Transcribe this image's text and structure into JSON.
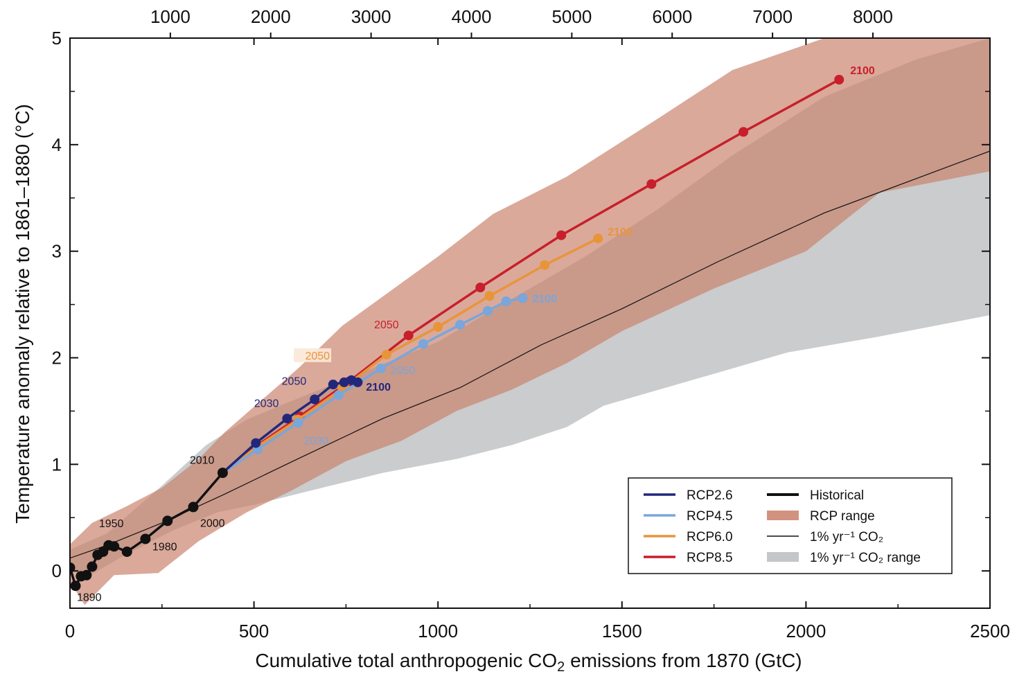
{
  "chart_data": {
    "type": "line",
    "xlabel": "Cumulative total anthropogenic CO",
    "xlabel_sub": "2",
    "xlabel_tail": " emissions from 1870 (GtC)",
    "ylabel": "Temperature anomaly relative to 1861–1880 (°C)",
    "xlim": [
      0,
      2500
    ],
    "ylim": [
      -0.35,
      5
    ],
    "x_ticks": [
      0,
      500,
      1000,
      1500,
      2000,
      2500
    ],
    "x_tick_labels": [
      "0",
      "500",
      "1000",
      "1500",
      "2000",
      "2500"
    ],
    "y_ticks": [
      0,
      1,
      2,
      3,
      4,
      5
    ],
    "y_tick_labels": [
      "0",
      "1",
      "2",
      "3",
      "4",
      "5"
    ],
    "top_axis": {
      "ticks_gtco2": [
        1000,
        2000,
        3000,
        4000,
        5000,
        6000,
        7000,
        8000
      ],
      "tick_labels": [
        "1000",
        "2000",
        "3000",
        "4000",
        "5000",
        "6000",
        "7000",
        "8000"
      ],
      "gtc_per_unit": 0.27273
    },
    "colors": {
      "rcp26": "#22277a",
      "rcp45": "#79a6db",
      "rcp60": "#e8953a",
      "rcp85": "#c71f2c",
      "historical": "#111111",
      "rcp_range": "#c9806a",
      "pct_range": "#c4c6c8"
    },
    "series": [
      {
        "name": "Historical",
        "key": "historical",
        "x": [
          0,
          15,
          30,
          45,
          60,
          75,
          90,
          105,
          120,
          155,
          205,
          265,
          335,
          415
        ],
        "y": [
          0.03,
          -0.14,
          -0.05,
          -0.04,
          0.04,
          0.15,
          0.18,
          0.24,
          0.23,
          0.18,
          0.3,
          0.47,
          0.6,
          0.92
        ]
      },
      {
        "name": "RCP2.6",
        "key": "rcp26",
        "x": [
          415,
          505,
          590,
          665,
          715,
          745,
          765,
          782
        ],
        "y": [
          0.92,
          1.2,
          1.43,
          1.61,
          1.75,
          1.77,
          1.79,
          1.77
        ]
      },
      {
        "name": "RCP4.5",
        "key": "rcp45",
        "x": [
          415,
          510,
          620,
          730,
          845,
          960,
          1060,
          1135,
          1185,
          1230
        ],
        "y": [
          0.92,
          1.14,
          1.39,
          1.65,
          1.9,
          2.13,
          2.31,
          2.44,
          2.53,
          2.56
        ]
      },
      {
        "name": "RCP6.0",
        "key": "rcp60",
        "x": [
          415,
          510,
          620,
          740,
          860,
          1000,
          1140,
          1290,
          1435
        ],
        "y": [
          0.92,
          1.17,
          1.42,
          1.71,
          2.03,
          2.29,
          2.58,
          2.87,
          3.12
        ]
      },
      {
        "name": "RCP8.5",
        "key": "rcp85",
        "x": [
          415,
          510,
          625,
          760,
          920,
          1115,
          1335,
          1580,
          1830,
          2090
        ],
        "y": [
          0.92,
          1.18,
          1.45,
          1.78,
          2.21,
          2.66,
          3.15,
          3.63,
          4.12,
          4.61
        ]
      },
      {
        "name": "1% yr⁻¹ CO₂",
        "key": "pct",
        "x": [
          0,
          100,
          250,
          420,
          600,
          850,
          1060,
          1280,
          1500,
          1760,
          2050,
          2500
        ],
        "y": [
          0.12,
          0.24,
          0.45,
          0.72,
          1.02,
          1.43,
          1.72,
          2.12,
          2.46,
          2.9,
          3.36,
          3.94
        ]
      }
    ],
    "year_labels": [
      {
        "text": "1890",
        "x": 15,
        "y": -0.14,
        "key": "historical"
      },
      {
        "text": "1950",
        "x": 60,
        "y": 0.36,
        "key": "historical"
      },
      {
        "text": "1980",
        "x": 205,
        "y": 0.22,
        "key": "historical"
      },
      {
        "text": "2000",
        "x": 335,
        "y": 0.53,
        "key": "historical"
      },
      {
        "text": "2010",
        "x": 415,
        "y": 0.98,
        "key": "historical"
      },
      {
        "text": "2030",
        "x": 590,
        "y": 1.5,
        "key": "rcp26"
      },
      {
        "text": "2050",
        "x": 665,
        "y": 1.68,
        "key": "rcp26"
      },
      {
        "text": "2100",
        "x": 782,
        "y": 1.77,
        "key": "rcp26",
        "bold": true
      },
      {
        "text": "2030",
        "x": 620,
        "y": 1.33,
        "key": "rcp45"
      },
      {
        "text": "2050",
        "x": 845,
        "y": 1.9,
        "key": "rcp45"
      },
      {
        "text": "2100",
        "x": 1230,
        "y": 2.56,
        "key": "rcp45",
        "bold": true
      },
      {
        "text": "2050",
        "x": 740,
        "y": 1.92,
        "key": "rcp60",
        "boxed": true
      },
      {
        "text": "2100",
        "x": 1435,
        "y": 3.12,
        "key": "rcp60",
        "bold": true
      },
      {
        "text": "2050",
        "x": 920,
        "y": 2.21,
        "key": "rcp85"
      },
      {
        "text": "2100",
        "x": 2090,
        "y": 4.61,
        "key": "rcp85",
        "bold": true
      }
    ],
    "ranges": {
      "rcp_range": {
        "x": [
          0,
          60,
          150,
          250,
          350,
          420,
          520,
          620,
          740,
          860,
          1000,
          1150,
          1350,
          1600,
          1800,
          2050,
          2500,
          2500,
          2200,
          2000,
          1750,
          1500,
          1350,
          1200,
          1050,
          900,
          750,
          600,
          480,
          350,
          240,
          120,
          40,
          0
        ],
        "y": [
          0.25,
          0.45,
          0.6,
          0.78,
          1.05,
          1.3,
          1.6,
          1.9,
          2.3,
          2.6,
          2.95,
          3.35,
          3.7,
          4.25,
          4.7,
          5.0,
          5.0,
          3.75,
          3.55,
          3.0,
          2.65,
          2.25,
          1.95,
          1.7,
          1.5,
          1.22,
          1.03,
          0.75,
          0.55,
          0.28,
          -0.02,
          -0.04,
          -0.32,
          -0.1
        ]
      },
      "pct_range": {
        "x": [
          0,
          100,
          250,
          370,
          480,
          620,
          800,
          1000,
          1200,
          1400,
          1600,
          1800,
          2050,
          2300,
          2500,
          2500,
          2200,
          1950,
          1700,
          1450,
          1350,
          1200,
          1050,
          850,
          650,
          500,
          400,
          280,
          150,
          50,
          0
        ],
        "y": [
          0.2,
          0.35,
          0.8,
          1.18,
          1.42,
          1.62,
          1.87,
          2.15,
          2.55,
          2.95,
          3.4,
          3.9,
          4.45,
          4.8,
          5.0,
          2.4,
          2.2,
          2.05,
          1.8,
          1.55,
          1.35,
          1.18,
          1.05,
          0.92,
          0.75,
          0.62,
          0.55,
          0.38,
          0.15,
          -0.05,
          0.0
        ]
      }
    },
    "legend": {
      "position": "bottom-right",
      "items": [
        {
          "label": "RCP2.6",
          "kind": "line",
          "key": "rcp26"
        },
        {
          "label": "RCP4.5",
          "kind": "line",
          "key": "rcp45"
        },
        {
          "label": "RCP6.0",
          "kind": "line",
          "key": "rcp60"
        },
        {
          "label": "RCP8.5",
          "kind": "line",
          "key": "rcp85"
        },
        {
          "label": "Historical",
          "kind": "thick",
          "key": "historical"
        },
        {
          "label": "RCP range",
          "kind": "patch",
          "key": "rcp_range"
        },
        {
          "label": "1% yr⁻¹ CO₂",
          "kind": "thin",
          "key": "pct"
        },
        {
          "label": "1% yr⁻¹ CO₂ range",
          "kind": "patch",
          "key": "pct_range"
        }
      ]
    }
  }
}
